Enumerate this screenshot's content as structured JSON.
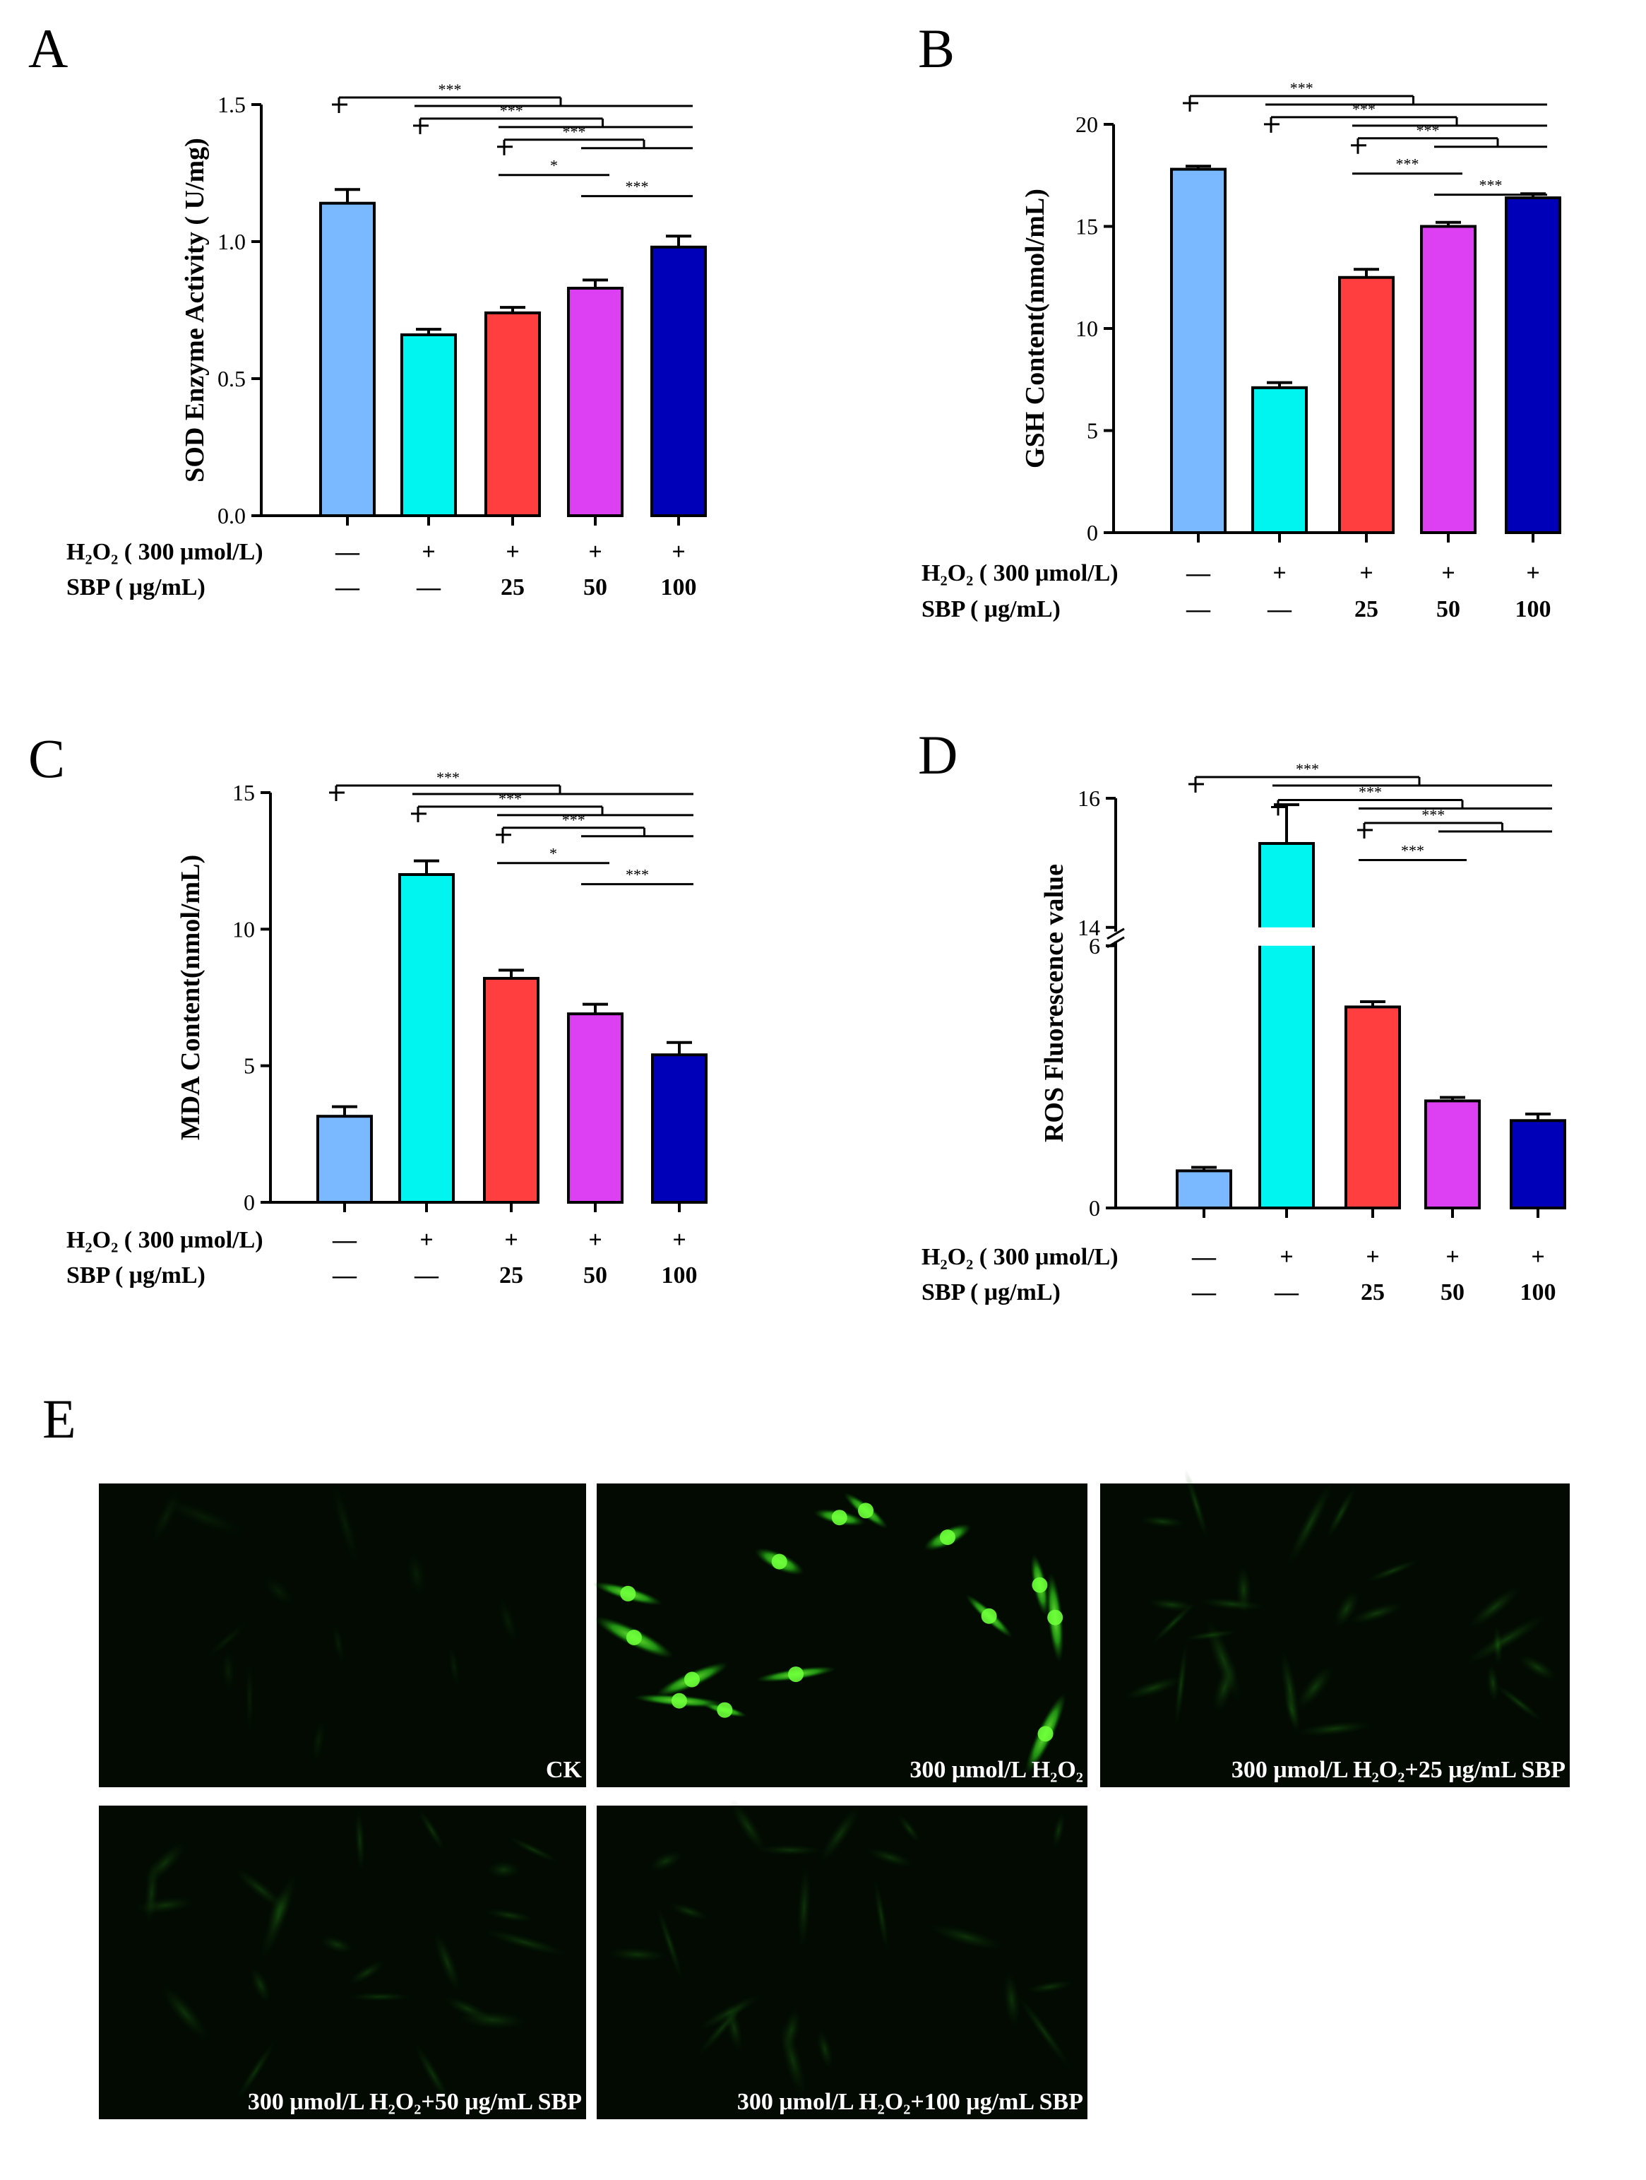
{
  "figure": {
    "palette": [
      "#7ab8ff",
      "#00f5f0",
      "#ff3f3f",
      "#dd3ff2",
      "#0000b8"
    ],
    "condition_rows": [
      {
        "label": "H₂O₂ ( 300 μmol/L)",
        "values": [
          "—",
          "+",
          "+",
          "+",
          "+"
        ]
      },
      {
        "label": "SBP ( μg/mL)",
        "values": [
          "—",
          "—",
          "25",
          "50",
          "100"
        ]
      }
    ]
  },
  "chart_data": [
    {
      "panel": "A",
      "type": "bar",
      "ylabel": "SOD Enzyme Activity ( U/mg)",
      "ylim": [
        0,
        1.5
      ],
      "yticks": [
        "0.0",
        "0.5",
        "1.0",
        "1.5"
      ],
      "values": [
        1.14,
        0.66,
        0.74,
        0.83,
        0.98
      ],
      "errors": [
        0.05,
        0.02,
        0.02,
        0.03,
        0.04
      ],
      "significance": [
        {
          "from": 0,
          "to": [
            1,
            2,
            3,
            4
          ],
          "label": "***"
        },
        {
          "from": 1,
          "to": [
            2,
            3,
            4
          ],
          "label": "***"
        },
        {
          "from": 2,
          "to": [
            3,
            4
          ],
          "label": "***"
        },
        {
          "from": 2,
          "to": [
            3
          ],
          "label": "*"
        },
        {
          "from": 3,
          "to": [
            4
          ],
          "label": "***"
        }
      ]
    },
    {
      "panel": "B",
      "type": "bar",
      "ylabel": "GSH Content(nmol/mL)",
      "ylim": [
        0,
        20
      ],
      "yticks": [
        "0",
        "5",
        "10",
        "15",
        "20"
      ],
      "values": [
        17.8,
        7.1,
        12.5,
        15.0,
        16.4
      ],
      "errors": [
        0.15,
        0.25,
        0.4,
        0.2,
        0.2
      ],
      "significance": [
        {
          "from": 0,
          "to": [
            1,
            2,
            3,
            4
          ],
          "label": "***"
        },
        {
          "from": 1,
          "to": [
            2,
            3,
            4
          ],
          "label": "***"
        },
        {
          "from": 2,
          "to": [
            3,
            4
          ],
          "label": "***"
        },
        {
          "from": 2,
          "to": [
            3
          ],
          "label": "***"
        },
        {
          "from": 3,
          "to": [
            4
          ],
          "label": "***"
        }
      ]
    },
    {
      "panel": "C",
      "type": "bar",
      "ylabel": "MDA Content(nmol/mL)",
      "ylim": [
        0,
        15
      ],
      "yticks": [
        "0",
        "5",
        "10",
        "15"
      ],
      "values": [
        3.15,
        12.0,
        8.2,
        6.9,
        5.4
      ],
      "errors": [
        0.35,
        0.5,
        0.3,
        0.35,
        0.45
      ],
      "significance": [
        {
          "from": 0,
          "to": [
            1,
            2,
            3,
            4
          ],
          "label": "***"
        },
        {
          "from": 1,
          "to": [
            2,
            3,
            4
          ],
          "label": "***"
        },
        {
          "from": 2,
          "to": [
            3,
            4
          ],
          "label": "***"
        },
        {
          "from": 2,
          "to": [
            3
          ],
          "label": "*"
        },
        {
          "from": 3,
          "to": [
            4
          ],
          "label": "***"
        }
      ]
    },
    {
      "panel": "D",
      "type": "bar",
      "ylabel": "ROS Fluorescence value",
      "axis_break": [
        6,
        14
      ],
      "ylim": [
        0,
        16
      ],
      "yticks": [
        "0",
        "6",
        "14",
        "16"
      ],
      "values": [
        0.85,
        15.3,
        4.6,
        2.45,
        2.0
      ],
      "errors": [
        0.08,
        0.6,
        0.12,
        0.08,
        0.15
      ],
      "significance": [
        {
          "from": 0,
          "to": [
            1,
            2,
            3,
            4
          ],
          "label": "***"
        },
        {
          "from": 1,
          "to": [
            2,
            3,
            4
          ],
          "label": "***"
        },
        {
          "from": 2,
          "to": [
            3,
            4
          ],
          "label": "***"
        },
        {
          "from": 2,
          "to": [
            3
          ],
          "label": "***"
        }
      ]
    }
  ],
  "microscopy": {
    "panel": "E",
    "tiles": [
      {
        "caption": "CK",
        "cells": "faint"
      },
      {
        "caption": "300 μmol/L H₂O₂",
        "cells": "bright"
      },
      {
        "caption": "300 μmol/L H₂O₂+25 μg/mL SBP",
        "cells": "moderate"
      },
      {
        "caption": "300 μmol/L H₂O₂+50 μg/mL SBP",
        "cells": "dim"
      },
      {
        "caption": "300 μmol/L H₂O₂+100 μg/mL SBP",
        "cells": "dim"
      }
    ]
  }
}
